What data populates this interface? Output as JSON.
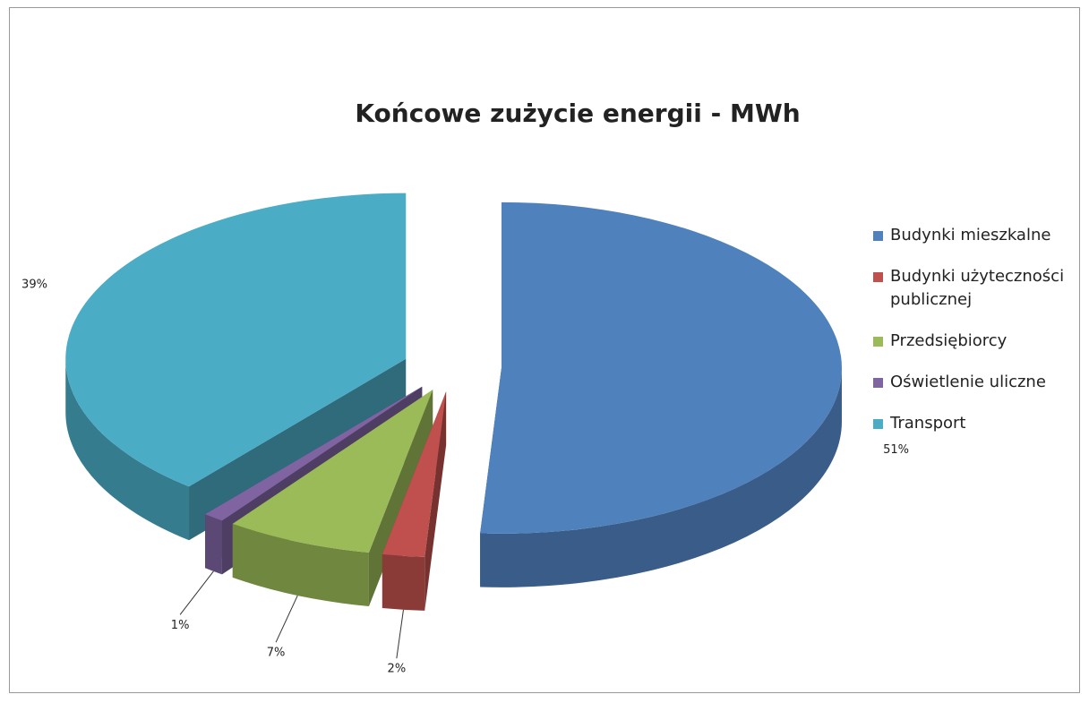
{
  "chart_data": {
    "type": "pie3d",
    "title": "Końcowe zużycie energii - MWh",
    "categories": [
      "Budynki mieszkalne",
      "Budynki użyteczności publicznej",
      "Przedsiębiorcy",
      "Oświetlenie uliczne",
      "Transport"
    ],
    "values": [
      51,
      2,
      7,
      1,
      39
    ],
    "value_labels": [
      "51%",
      "2%",
      "7%",
      "1%",
      "39%"
    ],
    "colors": [
      "#4f81bd",
      "#c0504d",
      "#9bbb59",
      "#8064a2",
      "#4bacc6"
    ],
    "legend": "right"
  }
}
